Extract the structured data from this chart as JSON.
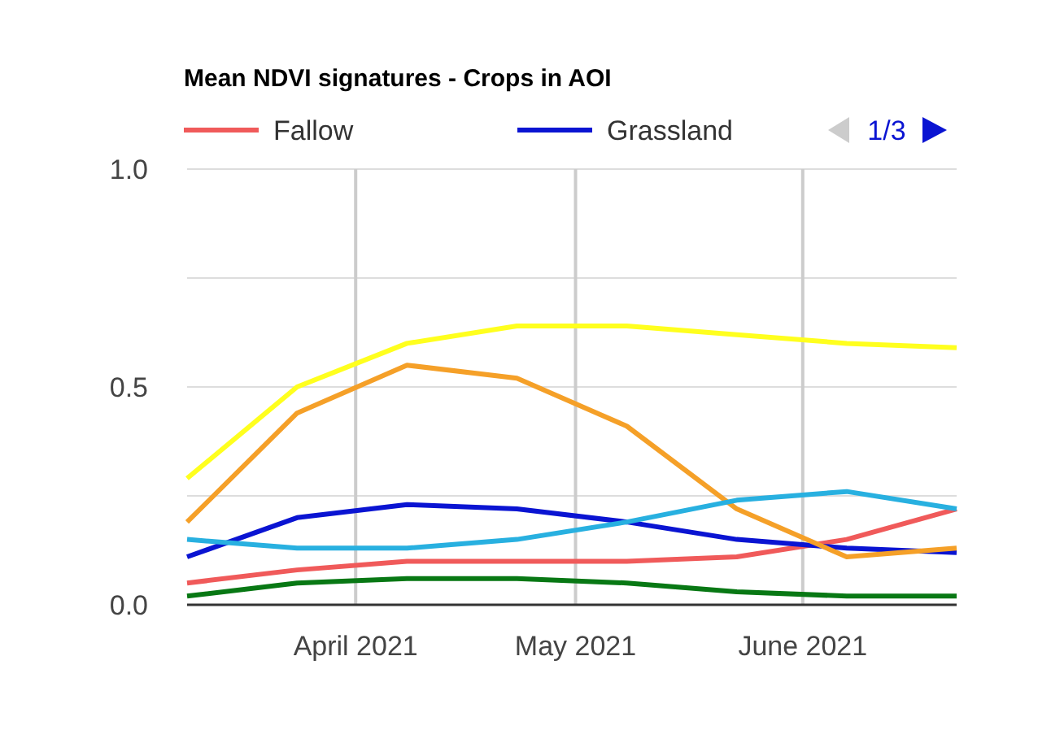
{
  "chart_data": {
    "type": "line",
    "title": "Mean NDVI signatures - Crops in AOI",
    "x": [
      "2021-03-09",
      "2021-03-24",
      "2021-04-08",
      "2021-04-23",
      "2021-05-08",
      "2021-05-23",
      "2021-06-07",
      "2021-06-22"
    ],
    "series": [
      {
        "name": "Fallow",
        "color": "#f05a5a",
        "values": [
          0.05,
          0.08,
          0.1,
          0.1,
          0.1,
          0.11,
          0.15,
          0.22
        ]
      },
      {
        "name": "Grassland",
        "color": "#0a14d2",
        "values": [
          0.11,
          0.2,
          0.23,
          0.22,
          0.19,
          0.15,
          0.13,
          0.12
        ]
      },
      {
        "color": "#ffff1e",
        "values": [
          0.29,
          0.5,
          0.6,
          0.64,
          0.64,
          0.62,
          0.6,
          0.59
        ]
      },
      {
        "color": "#f5a028",
        "values": [
          0.19,
          0.44,
          0.55,
          0.52,
          0.41,
          0.22,
          0.11,
          0.13
        ]
      },
      {
        "color": "#28b0e0",
        "values": [
          0.15,
          0.13,
          0.13,
          0.15,
          0.19,
          0.24,
          0.26,
          0.22
        ]
      },
      {
        "color": "#087814",
        "values": [
          0.02,
          0.05,
          0.06,
          0.06,
          0.05,
          0.03,
          0.02,
          0.02
        ]
      }
    ],
    "xlim": [
      "2021-03-09",
      "2021-06-22"
    ],
    "xticks": [
      {
        "value": "2021-04-01",
        "label": "April 2021"
      },
      {
        "value": "2021-05-01",
        "label": "May 2021"
      },
      {
        "value": "2021-06-01",
        "label": "June 2021"
      }
    ],
    "ylim": [
      0,
      1
    ],
    "yticks": [
      {
        "value": 0,
        "label": "0.0"
      },
      {
        "value": 0.25,
        "label": null
      },
      {
        "value": 0.5,
        "label": "0.5"
      },
      {
        "value": 0.75,
        "label": null
      },
      {
        "value": 1,
        "label": "1.0"
      }
    ],
    "grid": true,
    "legend": "top",
    "marker": "none",
    "line_style": "solid",
    "annotations": [
      "1/3"
    ]
  }
}
